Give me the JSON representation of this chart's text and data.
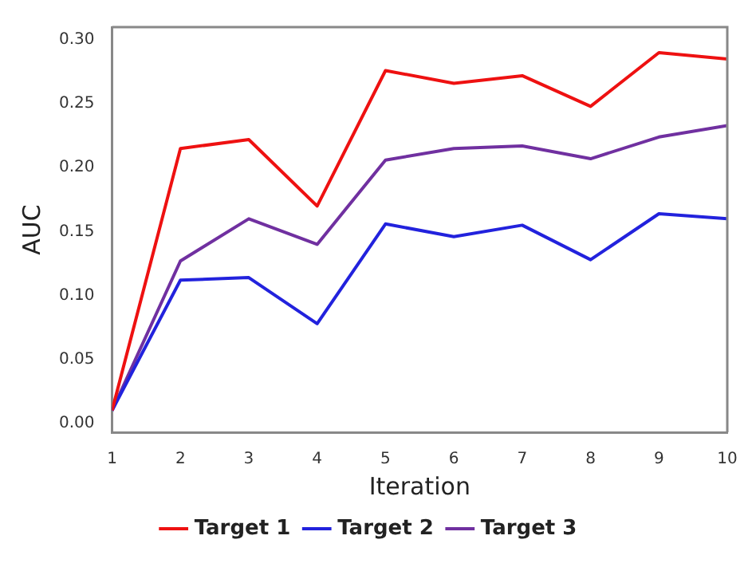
{
  "chart_data": {
    "type": "line",
    "xlabel": "Iteration",
    "ylabel": "AUC",
    "x": [
      1,
      2,
      3,
      4,
      5,
      6,
      7,
      8,
      9,
      10
    ],
    "series": [
      {
        "name": "Target 1",
        "color": "#ee1111",
        "values": [
          0.01,
          0.215,
          0.222,
          0.17,
          0.276,
          0.266,
          0.272,
          0.248,
          0.29,
          0.285
        ]
      },
      {
        "name": "Target 2",
        "color": "#2222dd",
        "values": [
          0.01,
          0.112,
          0.114,
          0.078,
          0.156,
          0.146,
          0.155,
          0.128,
          0.164,
          0.16
        ]
      },
      {
        "name": "Target 3",
        "color": "#7030a0",
        "values": [
          0.01,
          0.127,
          0.16,
          0.14,
          0.206,
          0.215,
          0.217,
          0.207,
          0.224,
          0.233
        ]
      }
    ],
    "xlim": [
      1,
      10
    ],
    "xticks": [
      1,
      2,
      3,
      4,
      5,
      6,
      7,
      8,
      9,
      10
    ],
    "ylim": [
      -0.007,
      0.31
    ],
    "yticks": [
      {
        "value": 0,
        "label": "0.00"
      },
      {
        "value": 0.05,
        "label": "0.05"
      },
      {
        "value": 0.1,
        "label": "0.10"
      },
      {
        "value": 0.15,
        "label": "0.15"
      },
      {
        "value": 0.2,
        "label": "0.20"
      },
      {
        "value": 0.25,
        "label": "0.25"
      },
      {
        "value": 0.3,
        "label": "0.30"
      }
    ],
    "grid": false,
    "legend": "bottom",
    "marker": "none",
    "line_style": "solid"
  }
}
